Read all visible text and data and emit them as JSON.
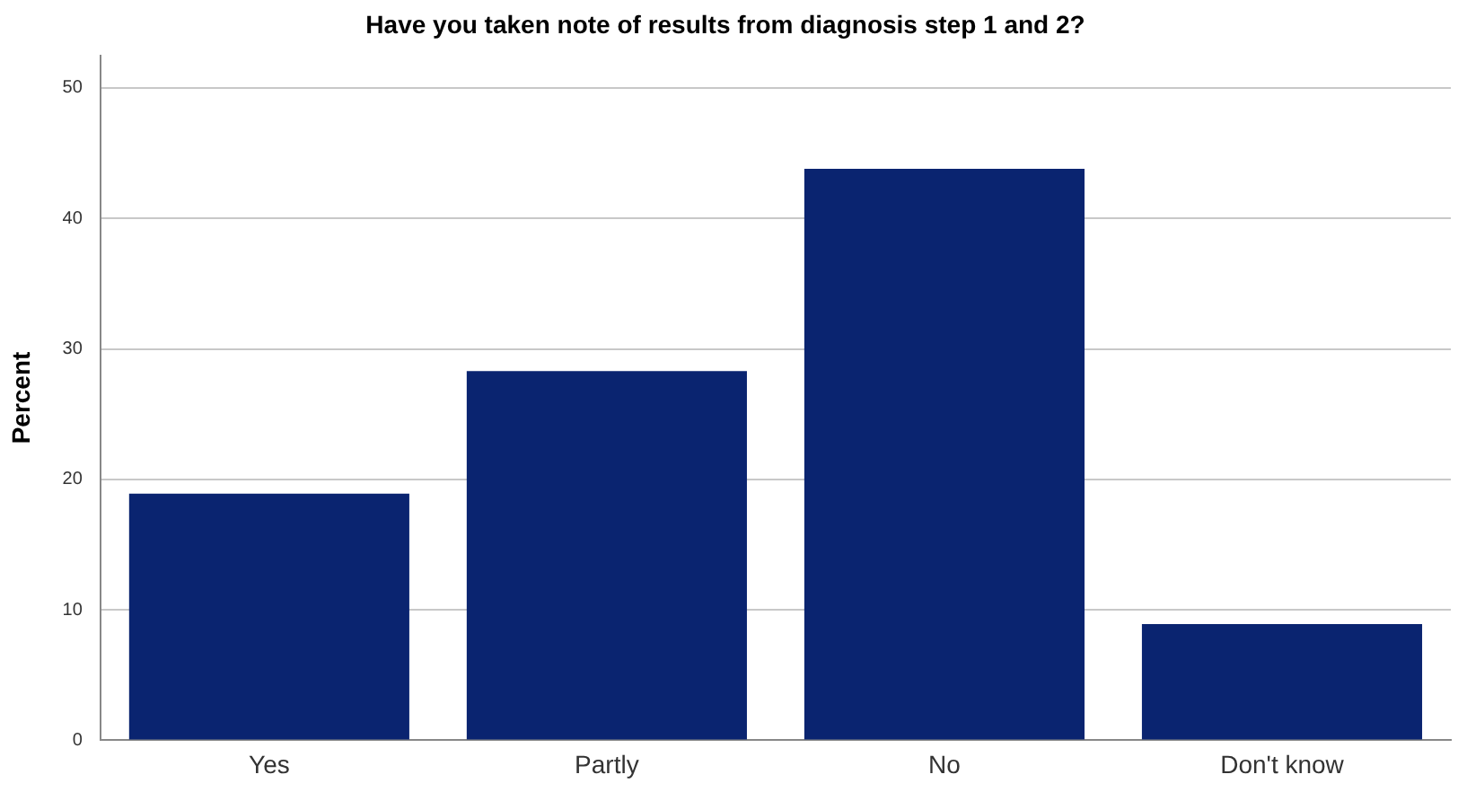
{
  "chart_data": {
    "type": "bar",
    "title": "Have you taken note of results from diagnosis step 1 and 2?",
    "ylabel": "Percent",
    "categories": [
      "Yes",
      "Partly",
      "No",
      "Don't know"
    ],
    "values": [
      18.9,
      28.3,
      43.8,
      8.9
    ],
    "color": "#0a2470",
    "ylim": [
      0,
      52.5
    ],
    "yticks": [
      0,
      10,
      20,
      30,
      40,
      50
    ],
    "grid": "y",
    "legend": false
  }
}
